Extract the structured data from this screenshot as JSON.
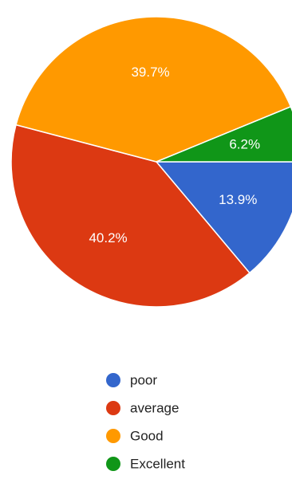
{
  "chart_data": {
    "type": "pie",
    "slices": [
      {
        "label": "poor",
        "value": 13.9,
        "display": "13.9%",
        "color": "#3366cc"
      },
      {
        "label": "average",
        "value": 40.2,
        "display": "40.2%",
        "color": "#dc3912"
      },
      {
        "label": "Good",
        "value": 39.7,
        "display": "39.7%",
        "color": "#ff9900"
      },
      {
        "label": "Excellent",
        "value": 6.2,
        "display": "6.2%",
        "color": "#109618"
      }
    ],
    "start_direction": "3 o'clock, clockwise",
    "legend": {
      "position": "bottom",
      "entries": [
        "poor",
        "average",
        "Good",
        "Excellent"
      ]
    }
  }
}
